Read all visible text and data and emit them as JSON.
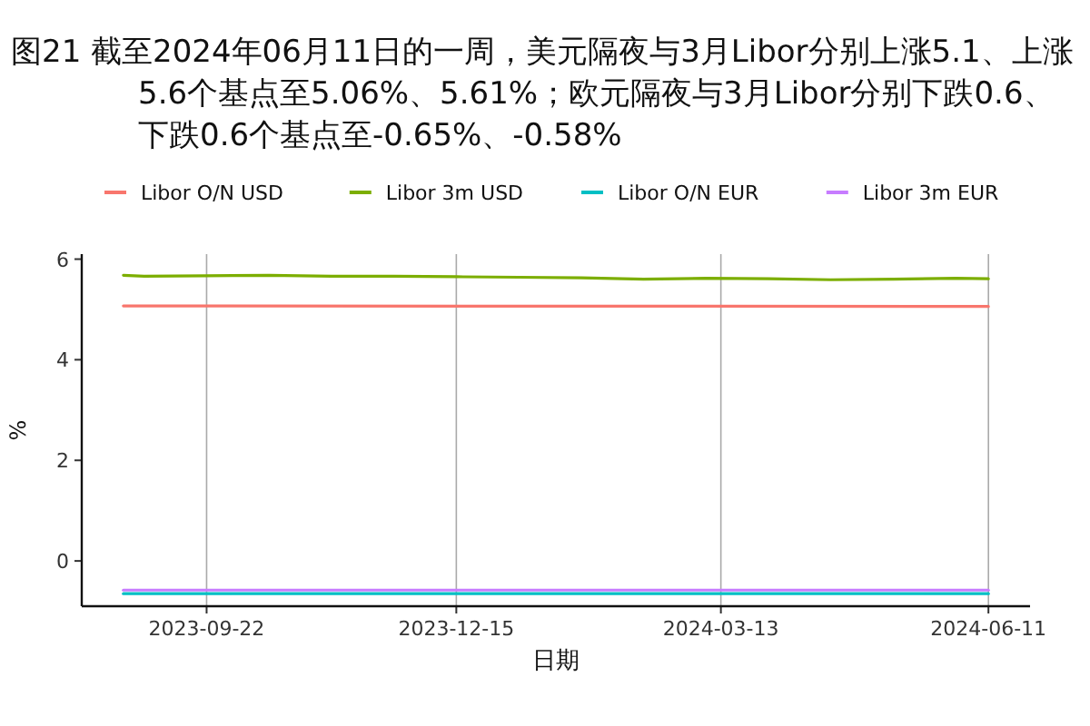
{
  "chart_data": {
    "type": "line",
    "title": "图21  截至2024年06月11日的一周，美元隔夜与3月Libor分别上涨5.1、上涨5.6个基点至5.06%、5.61%；欧元隔夜与3月Libor分别下跌0.6、下跌0.6个基点至-0.65%、-0.58%",
    "xlabel": "日期",
    "ylabel": "%",
    "xlim": [
      "2023-08-11",
      "2024-06-25"
    ],
    "xticks": [
      "2023-09-22",
      "2023-12-15",
      "2024-03-13",
      "2024-06-11"
    ],
    "ylim": [
      -0.9,
      6.1
    ],
    "yticks": [
      0,
      2,
      4,
      6
    ],
    "grid": "x",
    "legend": "top",
    "marker": "none",
    "line_style": "solid",
    "series": [
      {
        "name": "Libor O/N USD",
        "color": "#f8766d",
        "x": [
          "2023-08-25",
          "2024-06-11"
        ],
        "values": [
          5.07,
          5.06
        ]
      },
      {
        "name": "Libor 3m USD",
        "color": "#7cae00",
        "x": [
          "2023-08-25",
          "2023-09-01",
          "2023-09-22",
          "2023-10-13",
          "2023-11-03",
          "2023-11-24",
          "2023-12-15",
          "2024-01-05",
          "2024-01-26",
          "2024-02-16",
          "2024-03-08",
          "2024-03-29",
          "2024-04-19",
          "2024-05-10",
          "2024-05-31",
          "2024-06-11"
        ],
        "values": [
          5.68,
          5.66,
          5.67,
          5.68,
          5.66,
          5.66,
          5.65,
          5.64,
          5.63,
          5.6,
          5.62,
          5.61,
          5.59,
          5.6,
          5.62,
          5.61
        ]
      },
      {
        "name": "Libor O/N EUR",
        "color": "#00bfc4",
        "x": [
          "2023-08-25",
          "2024-06-11"
        ],
        "values": [
          -0.65,
          -0.65
        ]
      },
      {
        "name": "Libor 3m EUR",
        "color": "#c77cff",
        "x": [
          "2023-08-25",
          "2024-06-11"
        ],
        "values": [
          -0.58,
          -0.58
        ]
      }
    ]
  }
}
